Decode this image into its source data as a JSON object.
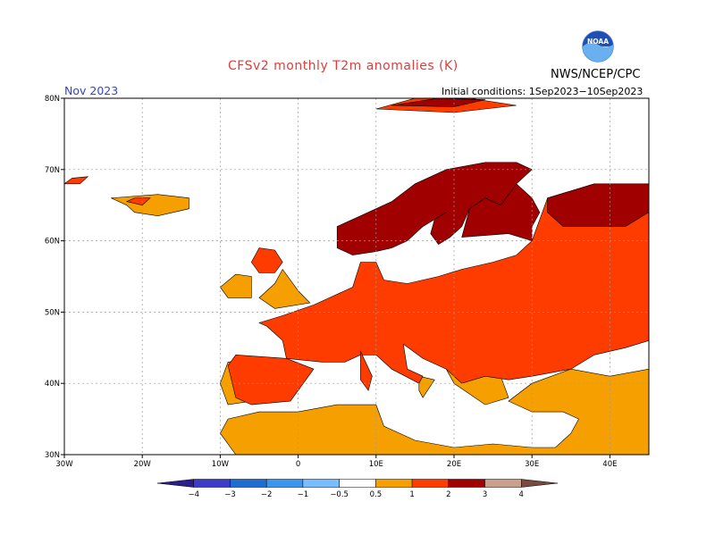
{
  "title": "CFSv2 monthly T2m anomalies (K)",
  "agency": "NWS/NCEP/CPC",
  "logo_text": "NOAA",
  "forecast_month": "Nov 2023",
  "initial_conditions": "Initial conditions: 1Sep2023−10Sep2023",
  "colors": {
    "title": "#e03c3c",
    "month": "#3246c8",
    "ocean": "#ffffff",
    "grid": "#9a9a9a"
  },
  "map": {
    "lon_range": [
      -30,
      45
    ],
    "lat_range": [
      30,
      80
    ],
    "lon_ticks": [
      {
        "value": -30,
        "label": "30W"
      },
      {
        "value": -20,
        "label": "20W"
      },
      {
        "value": -10,
        "label": "10W"
      },
      {
        "value": 0,
        "label": "0"
      },
      {
        "value": 10,
        "label": "10E"
      },
      {
        "value": 20,
        "label": "20E"
      },
      {
        "value": 30,
        "label": "30E"
      },
      {
        "value": 40,
        "label": "40E"
      }
    ],
    "lat_ticks": [
      {
        "value": 30,
        "label": "30N"
      },
      {
        "value": 40,
        "label": "40N"
      },
      {
        "value": 50,
        "label": "50N"
      },
      {
        "value": 60,
        "label": "60N"
      },
      {
        "value": 70,
        "label": "70N"
      },
      {
        "value": 80,
        "label": "80N"
      }
    ]
  },
  "colorbar": {
    "levels": [
      "−4",
      "−3",
      "−2",
      "−1",
      "−0.5",
      "0.5",
      "1",
      "2",
      "3",
      "4"
    ],
    "colors": [
      "#2a1e8c",
      "#3c3cc8",
      "#1e6ed2",
      "#3c96f0",
      "#78beff",
      "#ffffff",
      "#f5a000",
      "#ff3c00",
      "#a00000",
      "#c8a08c",
      "#7a4a3c"
    ]
  },
  "anomaly_regions": [
    {
      "category": "0.5-1",
      "color": "#f5a000",
      "polygons": [
        [
          [
            -8,
            30
          ],
          [
            -10,
            33
          ],
          [
            -9,
            35
          ],
          [
            -5,
            36
          ],
          [
            0,
            36
          ],
          [
            5,
            37
          ],
          [
            10,
            37
          ],
          [
            11,
            34
          ],
          [
            15,
            32
          ],
          [
            20,
            31
          ],
          [
            25,
            31.5
          ],
          [
            30,
            31
          ],
          [
            33,
            31
          ],
          [
            35,
            33
          ],
          [
            36,
            35
          ],
          [
            34,
            36
          ],
          [
            30,
            36
          ],
          [
            27,
            37.5
          ],
          [
            30,
            40
          ],
          [
            35,
            42
          ],
          [
            40,
            41
          ],
          [
            45,
            42
          ],
          [
            45,
            30
          ]
        ],
        [
          [
            -9,
            37
          ],
          [
            -10,
            40
          ],
          [
            -9,
            43
          ],
          [
            -4,
            43.5
          ],
          [
            -1,
            41
          ],
          [
            -3,
            38
          ]
        ],
        [
          [
            -22,
            65
          ],
          [
            -24,
            66
          ],
          [
            -18,
            66.5
          ],
          [
            -14,
            66
          ],
          [
            -14,
            64.5
          ],
          [
            -18,
            63.5
          ],
          [
            -21,
            64
          ]
        ],
        [
          [
            -9,
            52
          ],
          [
            -10,
            53.5
          ],
          [
            -8,
            55.3
          ],
          [
            -6,
            55
          ],
          [
            -6,
            52
          ]
        ],
        [
          [
            -3,
            50.5
          ],
          [
            -5,
            52
          ],
          [
            -3,
            54
          ],
          [
            -2,
            56
          ],
          [
            0,
            53
          ],
          [
            1.5,
            51.3
          ]
        ],
        [
          [
            42,
            52
          ],
          [
            42,
            48
          ],
          [
            45,
            47
          ],
          [
            45,
            52
          ]
        ],
        [
          [
            19,
            42
          ],
          [
            20,
            40
          ],
          [
            24,
            37
          ],
          [
            27,
            38
          ],
          [
            26,
            41
          ],
          [
            22,
            42
          ]
        ],
        [
          [
            15.5,
            41
          ],
          [
            17.5,
            40.5
          ],
          [
            16,
            38
          ],
          [
            15.5,
            39
          ]
        ]
      ]
    },
    {
      "category": "1-2",
      "color": "#ff3c00",
      "polygons": [
        [
          [
            -4,
            48
          ],
          [
            -2,
            46
          ],
          [
            -1.5,
            43.5
          ],
          [
            3,
            43
          ],
          [
            6,
            43
          ],
          [
            8,
            44
          ],
          [
            10,
            44
          ],
          [
            12,
            42
          ],
          [
            15.5,
            40
          ],
          [
            16,
            41
          ],
          [
            14,
            42
          ],
          [
            13.5,
            45.5
          ],
          [
            16,
            43.5
          ],
          [
            19,
            42
          ],
          [
            21,
            40
          ],
          [
            24,
            41
          ],
          [
            27,
            40.5
          ],
          [
            30,
            41
          ],
          [
            35,
            42
          ],
          [
            38,
            44
          ],
          [
            42,
            45
          ],
          [
            45,
            46
          ],
          [
            45,
            68
          ],
          [
            38,
            68
          ],
          [
            32,
            66
          ],
          [
            30,
            60
          ],
          [
            28,
            58
          ],
          [
            25,
            57
          ],
          [
            21,
            56
          ],
          [
            18,
            55
          ],
          [
            14,
            54
          ],
          [
            11,
            54.5
          ],
          [
            10,
            57
          ],
          [
            8,
            57
          ],
          [
            7,
            53.5
          ],
          [
            4,
            52
          ],
          [
            2,
            51
          ],
          [
            -2,
            49.5
          ],
          [
            -5,
            48.5
          ]
        ],
        [
          [
            -9,
            42.5
          ],
          [
            -8,
            44
          ],
          [
            -1.5,
            43.5
          ],
          [
            2,
            42
          ],
          [
            0,
            39
          ],
          [
            -1,
            37.5
          ],
          [
            -6,
            37
          ],
          [
            -8,
            38
          ]
        ],
        [
          [
            -6,
            57
          ],
          [
            -5,
            59
          ],
          [
            -3,
            58.7
          ],
          [
            -2,
            57
          ],
          [
            -3,
            55.5
          ],
          [
            -5,
            55.5
          ]
        ],
        [
          [
            -22,
            65.5
          ],
          [
            -21,
            66
          ],
          [
            -19,
            66
          ],
          [
            -20,
            65
          ]
        ],
        [
          [
            -30,
            68
          ],
          [
            -29,
            68.8
          ],
          [
            -27,
            69
          ],
          [
            -28,
            68
          ]
        ],
        [
          [
            10,
            78.5
          ],
          [
            15,
            80
          ],
          [
            22,
            80
          ],
          [
            28,
            79
          ],
          [
            20,
            78
          ]
        ],
        [
          [
            8,
            44.5
          ],
          [
            9.5,
            41
          ],
          [
            9,
            39
          ],
          [
            8,
            40.5
          ]
        ]
      ]
    },
    {
      "category": "2-3",
      "color": "#a00000",
      "polygons": [
        [
          [
            5,
            59
          ],
          [
            5,
            62
          ],
          [
            8,
            63.5
          ],
          [
            12,
            65.5
          ],
          [
            15,
            68
          ],
          [
            19,
            70
          ],
          [
            24,
            71
          ],
          [
            28,
            71
          ],
          [
            30,
            70
          ],
          [
            28,
            68
          ],
          [
            29,
            66
          ],
          [
            26,
            65
          ],
          [
            24,
            66
          ],
          [
            22,
            64.5
          ],
          [
            21,
            62
          ],
          [
            19.5,
            60.5
          ],
          [
            18,
            59.5
          ],
          [
            17,
            61
          ],
          [
            17.5,
            63
          ],
          [
            19,
            64
          ],
          [
            16,
            62
          ],
          [
            14,
            60
          ],
          [
            12,
            59
          ],
          [
            10,
            58.5
          ],
          [
            7,
            58
          ]
        ],
        [
          [
            21,
            60.5
          ],
          [
            27,
            61
          ],
          [
            30,
            60
          ],
          [
            30,
            62
          ],
          [
            31,
            64
          ],
          [
            30,
            66
          ],
          [
            28,
            68
          ],
          [
            26,
            65
          ],
          [
            24,
            66
          ],
          [
            22,
            64.5
          ]
        ],
        [
          [
            32,
            66
          ],
          [
            38,
            68
          ],
          [
            45,
            68
          ],
          [
            45,
            64
          ],
          [
            42,
            62
          ],
          [
            38,
            62
          ],
          [
            34,
            62
          ],
          [
            32,
            64
          ]
        ],
        [
          [
            12,
            79
          ],
          [
            18,
            80
          ],
          [
            24,
            79.8
          ],
          [
            20,
            78.8
          ]
        ]
      ]
    }
  ]
}
